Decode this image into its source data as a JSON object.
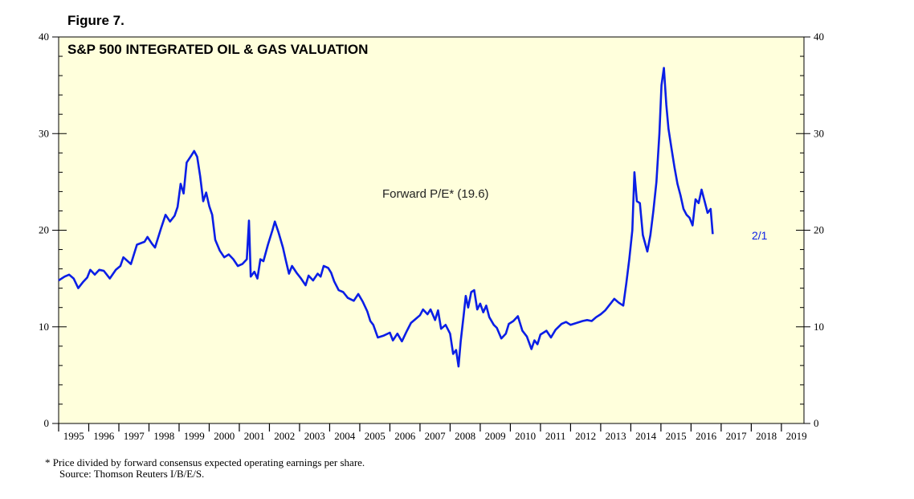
{
  "figure_label": "Figure 7.",
  "colors": {
    "plot_bg": "#ffffdc",
    "line": "#0a1ee6",
    "axis": "#000000"
  },
  "footnote": {
    "line1": "*   Price divided by forward consensus expected operating earnings per share.",
    "line2": "Source: Thomson Reuters I/B/E/S."
  },
  "chart_data": {
    "type": "line",
    "title": "S&P 500 INTEGRATED OIL & GAS VALUATION",
    "annotation": "Forward P/E* (19.6)",
    "end_label": "2/1",
    "ylim": [
      0,
      40
    ],
    "yticks": [
      0,
      10,
      20,
      30,
      40
    ],
    "xlim": [
      1995.0,
      2019.75
    ],
    "x_tick_labels": [
      "1995",
      "1996",
      "1997",
      "1998",
      "1999",
      "2000",
      "2001",
      "2002",
      "2003",
      "2004",
      "2005",
      "2006",
      "2007",
      "2008",
      "2009",
      "2010",
      "2011",
      "2012",
      "2013",
      "2014",
      "2015",
      "2016",
      "2017",
      "2018",
      "2019"
    ],
    "series": [
      {
        "name": "Forward P/E",
        "points": [
          [
            1995.0,
            14.8
          ],
          [
            1995.2,
            15.2
          ],
          [
            1995.35,
            15.4
          ],
          [
            1995.5,
            15.0
          ],
          [
            1995.65,
            14.0
          ],
          [
            1995.8,
            14.6
          ],
          [
            1995.95,
            15.1
          ],
          [
            1996.05,
            15.9
          ],
          [
            1996.2,
            15.4
          ],
          [
            1996.35,
            15.9
          ],
          [
            1996.5,
            15.8
          ],
          [
            1996.7,
            15.0
          ],
          [
            1996.9,
            15.9
          ],
          [
            1997.05,
            16.3
          ],
          [
            1997.15,
            17.2
          ],
          [
            1997.4,
            16.5
          ],
          [
            1997.6,
            18.5
          ],
          [
            1997.85,
            18.8
          ],
          [
            1997.95,
            19.3
          ],
          [
            1998.1,
            18.6
          ],
          [
            1998.2,
            18.2
          ],
          [
            1998.4,
            20.2
          ],
          [
            1998.55,
            21.6
          ],
          [
            1998.7,
            20.9
          ],
          [
            1998.85,
            21.5
          ],
          [
            1998.95,
            22.4
          ],
          [
            1999.05,
            24.8
          ],
          [
            1999.15,
            23.8
          ],
          [
            1999.25,
            27.0
          ],
          [
            1999.4,
            27.7
          ],
          [
            1999.5,
            28.2
          ],
          [
            1999.6,
            27.6
          ],
          [
            1999.7,
            25.6
          ],
          [
            1999.8,
            23.0
          ],
          [
            1999.9,
            23.9
          ],
          [
            2000.0,
            22.5
          ],
          [
            2000.1,
            21.6
          ],
          [
            2000.2,
            19.0
          ],
          [
            2000.35,
            17.9
          ],
          [
            2000.5,
            17.2
          ],
          [
            2000.65,
            17.5
          ],
          [
            2000.8,
            17.0
          ],
          [
            2000.95,
            16.3
          ],
          [
            2001.1,
            16.5
          ],
          [
            2001.25,
            17.0
          ],
          [
            2001.32,
            21.0
          ],
          [
            2001.38,
            15.2
          ],
          [
            2001.5,
            15.7
          ],
          [
            2001.6,
            15.0
          ],
          [
            2001.7,
            17.0
          ],
          [
            2001.8,
            16.8
          ],
          [
            2001.95,
            18.5
          ],
          [
            2002.1,
            20.0
          ],
          [
            2002.18,
            20.9
          ],
          [
            2002.3,
            19.8
          ],
          [
            2002.45,
            18.2
          ],
          [
            2002.55,
            16.8
          ],
          [
            2002.65,
            15.5
          ],
          [
            2002.75,
            16.3
          ],
          [
            2002.9,
            15.6
          ],
          [
            2003.05,
            15.0
          ],
          [
            2003.2,
            14.3
          ],
          [
            2003.3,
            15.3
          ],
          [
            2003.45,
            14.8
          ],
          [
            2003.6,
            15.5
          ],
          [
            2003.7,
            15.2
          ],
          [
            2003.8,
            16.3
          ],
          [
            2003.95,
            16.1
          ],
          [
            2004.05,
            15.6
          ],
          [
            2004.15,
            14.7
          ],
          [
            2004.3,
            13.8
          ],
          [
            2004.45,
            13.6
          ],
          [
            2004.6,
            13.0
          ],
          [
            2004.8,
            12.7
          ],
          [
            2004.95,
            13.4
          ],
          [
            2005.1,
            12.6
          ],
          [
            2005.25,
            11.6
          ],
          [
            2005.35,
            10.6
          ],
          [
            2005.45,
            10.2
          ],
          [
            2005.6,
            8.9
          ],
          [
            2005.8,
            9.1
          ],
          [
            2006.0,
            9.4
          ],
          [
            2006.1,
            8.6
          ],
          [
            2006.25,
            9.3
          ],
          [
            2006.4,
            8.5
          ],
          [
            2006.55,
            9.5
          ],
          [
            2006.7,
            10.4
          ],
          [
            2006.85,
            10.8
          ],
          [
            2007.0,
            11.2
          ],
          [
            2007.1,
            11.8
          ],
          [
            2007.25,
            11.3
          ],
          [
            2007.35,
            11.8
          ],
          [
            2007.5,
            10.7
          ],
          [
            2007.6,
            11.7
          ],
          [
            2007.7,
            9.8
          ],
          [
            2007.85,
            10.2
          ],
          [
            2008.0,
            9.3
          ],
          [
            2008.1,
            7.2
          ],
          [
            2008.2,
            7.6
          ],
          [
            2008.28,
            5.9
          ],
          [
            2008.35,
            8.5
          ],
          [
            2008.45,
            11.2
          ],
          [
            2008.52,
            13.2
          ],
          [
            2008.6,
            12.0
          ],
          [
            2008.7,
            13.6
          ],
          [
            2008.8,
            13.8
          ],
          [
            2008.9,
            11.8
          ],
          [
            2009.0,
            12.4
          ],
          [
            2009.1,
            11.5
          ],
          [
            2009.2,
            12.2
          ],
          [
            2009.3,
            11.0
          ],
          [
            2009.45,
            10.2
          ],
          [
            2009.55,
            9.9
          ],
          [
            2009.7,
            8.8
          ],
          [
            2009.85,
            9.3
          ],
          [
            2009.95,
            10.3
          ],
          [
            2010.1,
            10.6
          ],
          [
            2010.25,
            11.1
          ],
          [
            2010.4,
            9.6
          ],
          [
            2010.55,
            9.0
          ],
          [
            2010.7,
            7.7
          ],
          [
            2010.8,
            8.6
          ],
          [
            2010.9,
            8.2
          ],
          [
            2011.0,
            9.2
          ],
          [
            2011.2,
            9.6
          ],
          [
            2011.35,
            8.9
          ],
          [
            2011.5,
            9.7
          ],
          [
            2011.7,
            10.3
          ],
          [
            2011.85,
            10.5
          ],
          [
            2012.0,
            10.2
          ],
          [
            2012.2,
            10.4
          ],
          [
            2012.4,
            10.6
          ],
          [
            2012.55,
            10.7
          ],
          [
            2012.7,
            10.6
          ],
          [
            2012.85,
            11.0
          ],
          [
            2013.0,
            11.3
          ],
          [
            2013.15,
            11.7
          ],
          [
            2013.3,
            12.3
          ],
          [
            2013.45,
            12.9
          ],
          [
            2013.6,
            12.5
          ],
          [
            2013.75,
            12.2
          ],
          [
            2013.85,
            14.5
          ],
          [
            2013.95,
            17.0
          ],
          [
            2014.05,
            20.0
          ],
          [
            2014.12,
            26.0
          ],
          [
            2014.2,
            23.0
          ],
          [
            2014.3,
            22.8
          ],
          [
            2014.4,
            19.5
          ],
          [
            2014.55,
            17.8
          ],
          [
            2014.65,
            19.5
          ],
          [
            2014.75,
            22.0
          ],
          [
            2014.85,
            25.0
          ],
          [
            2014.95,
            30.0
          ],
          [
            2015.02,
            35.0
          ],
          [
            2015.1,
            36.8
          ],
          [
            2015.18,
            33.0
          ],
          [
            2015.25,
            30.5
          ],
          [
            2015.35,
            28.5
          ],
          [
            2015.45,
            26.5
          ],
          [
            2015.55,
            24.8
          ],
          [
            2015.65,
            23.6
          ],
          [
            2015.75,
            22.2
          ],
          [
            2015.85,
            21.6
          ],
          [
            2015.95,
            21.3
          ],
          [
            2016.05,
            20.5
          ],
          [
            2016.15,
            23.2
          ],
          [
            2016.25,
            22.8
          ],
          [
            2016.35,
            24.2
          ],
          [
            2016.45,
            23.0
          ],
          [
            2016.55,
            21.8
          ],
          [
            2016.65,
            22.2
          ],
          [
            2016.72,
            19.6
          ]
        ]
      }
    ]
  }
}
